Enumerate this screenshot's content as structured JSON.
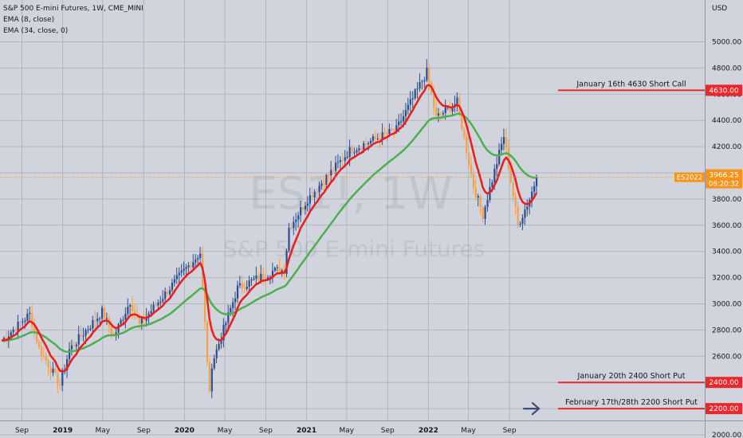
{
  "legend": {
    "symbol_line": "S&P 500 E-mini Futures, 1W, CME_MINI",
    "ema_fast": "EMA (8, close)",
    "ema_slow": "EMA (34, close, 0)"
  },
  "watermark": {
    "symbol": "ES1!, 1W",
    "description": "S&P 500 E-mini Futures"
  },
  "price_badge": {
    "symbol": "ES2022",
    "price": "3966.25",
    "countdown": "06:20:32"
  },
  "colors": {
    "background": "#d1d4dc",
    "grid": "#b2b5be",
    "up_candle": "#2a4d8f",
    "down_candle": "#f7a145",
    "ema_fast": "#ee1c1c",
    "ema_slow": "#4caf50",
    "level_line": "#e8282b",
    "arrow": "#3c4d78",
    "badge": "#f7941d"
  },
  "chart_data": {
    "type": "candlestick",
    "title": "S&P 500 E-mini Futures, 1W, CME_MINI",
    "y_axis_unit": "USD",
    "y_ticks": [
      2000,
      2200,
      2400,
      2600,
      2800,
      3000,
      3200,
      3400,
      3600,
      3800,
      4000,
      4200,
      4400,
      4600,
      4800,
      5000
    ],
    "x_ticks": [
      "Sep",
      "2019",
      "May",
      "Sep",
      "2020",
      "May",
      "Sep",
      "2021",
      "May",
      "Sep",
      "2022",
      "May",
      "Sep"
    ],
    "approx_weekly_close_path": [
      {
        "date": "2018-07-02",
        "close": 2720
      },
      {
        "date": "2018-09-24",
        "close": 2920
      },
      {
        "date": "2018-10-22",
        "close": 2660
      },
      {
        "date": "2018-12-24",
        "close": 2380
      },
      {
        "date": "2019-01-21",
        "close": 2650
      },
      {
        "date": "2019-04-29",
        "close": 2940
      },
      {
        "date": "2019-06-03",
        "close": 2750
      },
      {
        "date": "2019-07-22",
        "close": 3020
      },
      {
        "date": "2019-08-19",
        "close": 2840
      },
      {
        "date": "2019-12-30",
        "close": 3250
      },
      {
        "date": "2020-02-17",
        "close": 3390
      },
      {
        "date": "2020-03-16",
        "close": 2300
      },
      {
        "date": "2020-03-23",
        "close": 2540
      },
      {
        "date": "2020-06-08",
        "close": 3120
      },
      {
        "date": "2020-09-21",
        "close": 3250
      },
      {
        "date": "2020-10-26",
        "close": 3260
      },
      {
        "date": "2020-11-09",
        "close": 3580
      },
      {
        "date": "2021-01-04",
        "close": 3800
      },
      {
        "date": "2021-05-10",
        "close": 4170
      },
      {
        "date": "2021-09-27",
        "close": 4330
      },
      {
        "date": "2021-12-27",
        "close": 4770
      },
      {
        "date": "2022-01-24",
        "close": 4420
      },
      {
        "date": "2022-03-28",
        "close": 4540
      },
      {
        "date": "2022-05-16",
        "close": 3900
      },
      {
        "date": "2022-06-13",
        "close": 3680
      },
      {
        "date": "2022-08-15",
        "close": 4280
      },
      {
        "date": "2022-09-26",
        "close": 3600
      },
      {
        "date": "2022-10-31",
        "close": 3800
      },
      {
        "date": "2022-11-21",
        "close": 3966
      }
    ],
    "series": [
      {
        "name": "EMA (8, close)",
        "color": "#ee1c1c"
      },
      {
        "name": "EMA (34, close, 0)",
        "color": "#4caf50"
      }
    ],
    "horizontal_levels": [
      {
        "price": "4630.00",
        "label": "January 16th 4630 Short Call"
      },
      {
        "price": "2400.00",
        "label": "January 20th 2400 Short Put"
      },
      {
        "price": "2200.00",
        "label": "February 17th/28th 2200 Short Put"
      }
    ],
    "last_price": "3966.25"
  }
}
